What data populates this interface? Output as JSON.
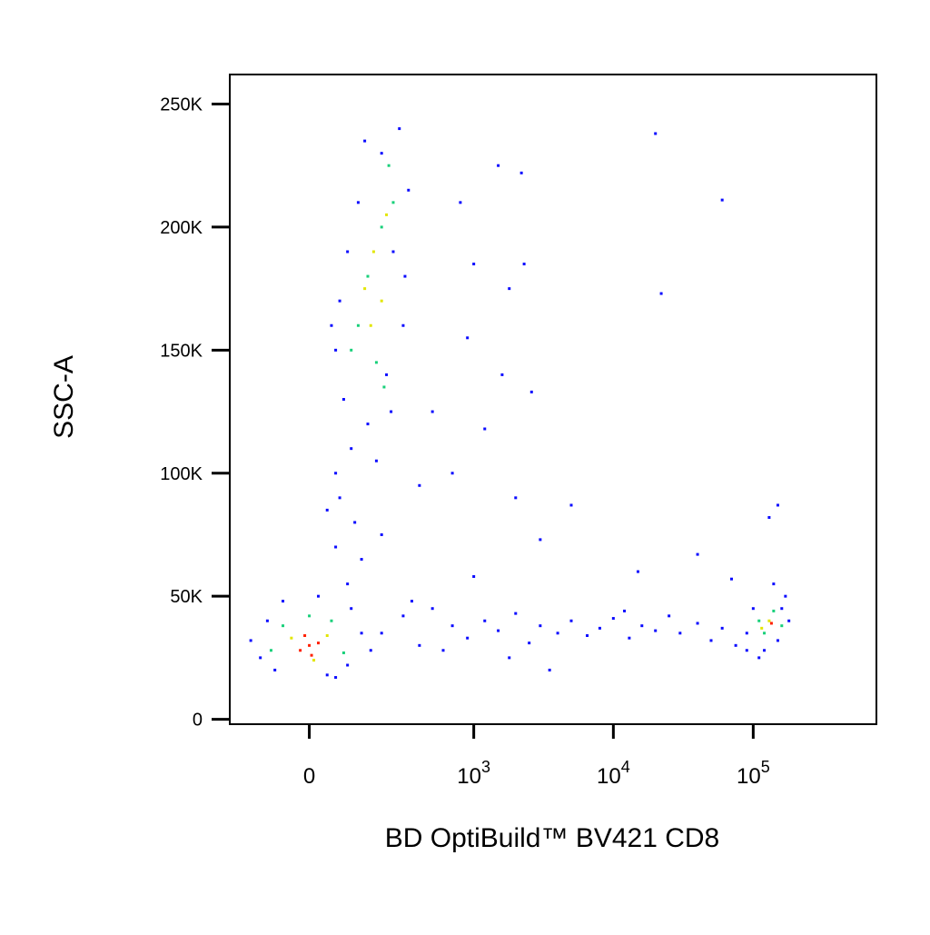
{
  "chart_data": {
    "type": "scatter",
    "x_label": "BD OptiBuild™ BV421 CD8",
    "y_label": "SSC-A",
    "xscale": "biexponential",
    "linear_width": 134,
    "xlim": [
      -230,
      760000
    ],
    "xticks": [
      0,
      {
        "value": 1000,
        "label": "10",
        "sup": "3"
      },
      {
        "value": 10000,
        "label": "10",
        "sup": "4"
      },
      {
        "value": 100000,
        "label": "10",
        "sup": "5"
      }
    ],
    "ylim": [
      -2000,
      262000
    ],
    "yticks": [
      {
        "value": 0,
        "label": "0"
      },
      {
        "value": 50000,
        "label": "50K"
      },
      {
        "value": 100000,
        "label": "100K"
      },
      {
        "value": 150000,
        "label": "150K"
      },
      {
        "value": 200000,
        "label": "200K"
      },
      {
        "value": 250000,
        "label": "250K"
      }
    ],
    "series": [
      {
        "color": "#0a0aff",
        "x": [
          -120,
          -80,
          40,
          90,
          -150,
          130,
          100,
          -60,
          20,
          60,
          -100,
          160,
          80,
          150,
          220,
          60,
          300,
          100,
          250,
          70,
          200,
          280,
          120,
          330,
          90,
          180,
          240,
          50,
          310,
          140,
          60,
          70,
          110,
          60,
          130,
          90,
          200,
          40,
          200,
          300,
          400,
          500,
          700,
          900,
          1200,
          1500,
          2000,
          2500,
          3000,
          4000,
          5000,
          6500,
          8000,
          10000,
          13000,
          16000,
          20000,
          25000,
          30000,
          40000,
          50000,
          60000,
          75000,
          350,
          600,
          1800,
          3500,
          12000,
          800,
          1500,
          2200,
          1000,
          1800,
          2300,
          20000,
          60000,
          22000,
          900,
          1600,
          2600,
          1200,
          500,
          2000,
          5000,
          150000,
          130000,
          700,
          400,
          15000,
          40000,
          3000,
          1000,
          160000,
          90000,
          110000,
          180000,
          70000,
          90000,
          100000,
          150000,
          170000,
          120000,
          140000
        ],
        "values": [
          25000,
          20000,
          18000,
          22000,
          32000,
          35000,
          45000,
          48000,
          50000,
          17000,
          40000,
          28000,
          130000,
          120000,
          140000,
          150000,
          160000,
          110000,
          190000,
          170000,
          230000,
          240000,
          210000,
          215000,
          190000,
          105000,
          125000,
          160000,
          180000,
          235000,
          100000,
          90000,
          80000,
          70000,
          65000,
          55000,
          75000,
          85000,
          35000,
          42000,
          30000,
          45000,
          38000,
          33000,
          40000,
          36000,
          43000,
          31000,
          38000,
          35000,
          40000,
          34000,
          37000,
          41000,
          33000,
          38000,
          36000,
          42000,
          35000,
          39000,
          32000,
          37000,
          30000,
          48000,
          28000,
          25000,
          20000,
          44000,
          210000,
          225000,
          222000,
          185000,
          175000,
          185000,
          238000,
          211000,
          173000,
          155000,
          140000,
          133000,
          118000,
          125000,
          90000,
          87000,
          87000,
          82000,
          100000,
          95000,
          60000,
          67000,
          73000,
          58000,
          45000,
          28000,
          25000,
          40000,
          57000,
          35000,
          45000,
          32000,
          50000,
          28000,
          55000
        ]
      },
      {
        "color": "#18d07a",
        "x": [
          -60,
          50,
          -90,
          80,
          0,
          200,
          150,
          250,
          120,
          180,
          230,
          100,
          210,
          110000,
          140000,
          120000,
          160000
        ],
        "values": [
          38000,
          40000,
          28000,
          27000,
          42000,
          200000,
          180000,
          210000,
          160000,
          145000,
          225000,
          150000,
          135000,
          40000,
          44000,
          35000,
          38000
        ]
      },
      {
        "color": "#e2e600",
        "x": [
          -40,
          40,
          10,
          170,
          200,
          140,
          220,
          160,
          130000,
          115000
        ],
        "values": [
          33000,
          34000,
          24000,
          190000,
          170000,
          175000,
          205000,
          160000,
          40000,
          37000
        ]
      },
      {
        "color": "#ff2000",
        "x": [
          0,
          -20,
          20,
          5,
          -10,
          135000
        ],
        "values": [
          30000,
          28000,
          31000,
          26000,
          34000,
          39000
        ]
      }
    ]
  }
}
